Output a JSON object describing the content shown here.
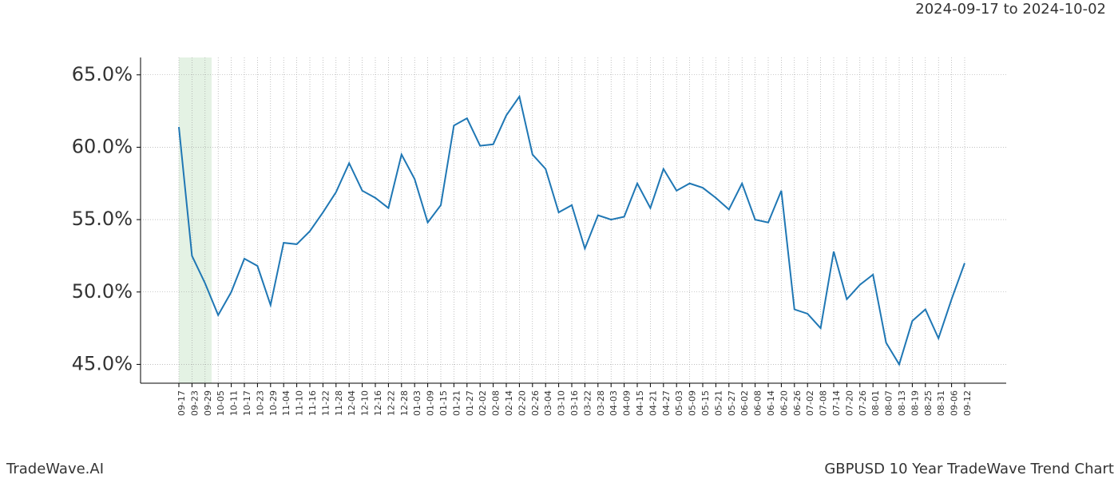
{
  "chart_data": {
    "type": "line",
    "title": "GBPUSD 10 Year TradeWave Trend Chart",
    "date_range": "2024-09-17 to 2024-10-02",
    "brand": "TradeWave.AI",
    "categories": [
      "09-17",
      "09-23",
      "09-29",
      "10-05",
      "10-11",
      "10-17",
      "10-23",
      "10-29",
      "11-04",
      "11-10",
      "11-16",
      "11-22",
      "11-28",
      "12-04",
      "12-10",
      "12-16",
      "12-22",
      "12-28",
      "01-03",
      "01-09",
      "01-15",
      "01-21",
      "01-27",
      "02-02",
      "02-08",
      "02-14",
      "02-20",
      "02-26",
      "03-04",
      "03-10",
      "03-16",
      "03-22",
      "03-28",
      "04-03",
      "04-09",
      "04-15",
      "04-21",
      "04-27",
      "05-03",
      "05-09",
      "05-15",
      "05-21",
      "05-27",
      "06-02",
      "06-08",
      "06-14",
      "06-20",
      "06-26",
      "07-02",
      "07-08",
      "07-14",
      "07-20",
      "07-26",
      "08-01",
      "08-07",
      "08-13",
      "08-19",
      "08-25",
      "08-31",
      "09-06",
      "09-12"
    ],
    "series": [
      {
        "color": "#1f77b4",
        "values": [
          61.4,
          52.5,
          50.6,
          48.4,
          50.0,
          52.3,
          51.8,
          49.1,
          53.4,
          53.3,
          54.2,
          55.5,
          56.9,
          58.9,
          57.0,
          56.5,
          55.8,
          59.5,
          57.8,
          54.8,
          56.0,
          61.5,
          62.0,
          60.1,
          60.2,
          62.2,
          63.5,
          59.5,
          58.5,
          55.5,
          56.0,
          53.0,
          55.3,
          55.0,
          55.2,
          57.5,
          55.8,
          58.5,
          57.0,
          57.5,
          57.2,
          56.5,
          55.7,
          57.5,
          55.0,
          54.8,
          57.0,
          48.8,
          48.5,
          47.5,
          52.8,
          49.5,
          50.5,
          51.2,
          46.5,
          45.0,
          48.0,
          48.8,
          46.8,
          49.5,
          52.0
        ]
      }
    ],
    "ylim": [
      43.7,
      66.2
    ],
    "yticks": [
      {
        "value": 45,
        "label": "45.0%"
      },
      {
        "value": 50,
        "label": "50.0%"
      },
      {
        "value": 55,
        "label": "55.0%"
      },
      {
        "value": 60,
        "label": "60.0%"
      },
      {
        "value": 65,
        "label": "65.0%"
      }
    ],
    "grid": true,
    "highlight_color": "#d9ecd9"
  }
}
